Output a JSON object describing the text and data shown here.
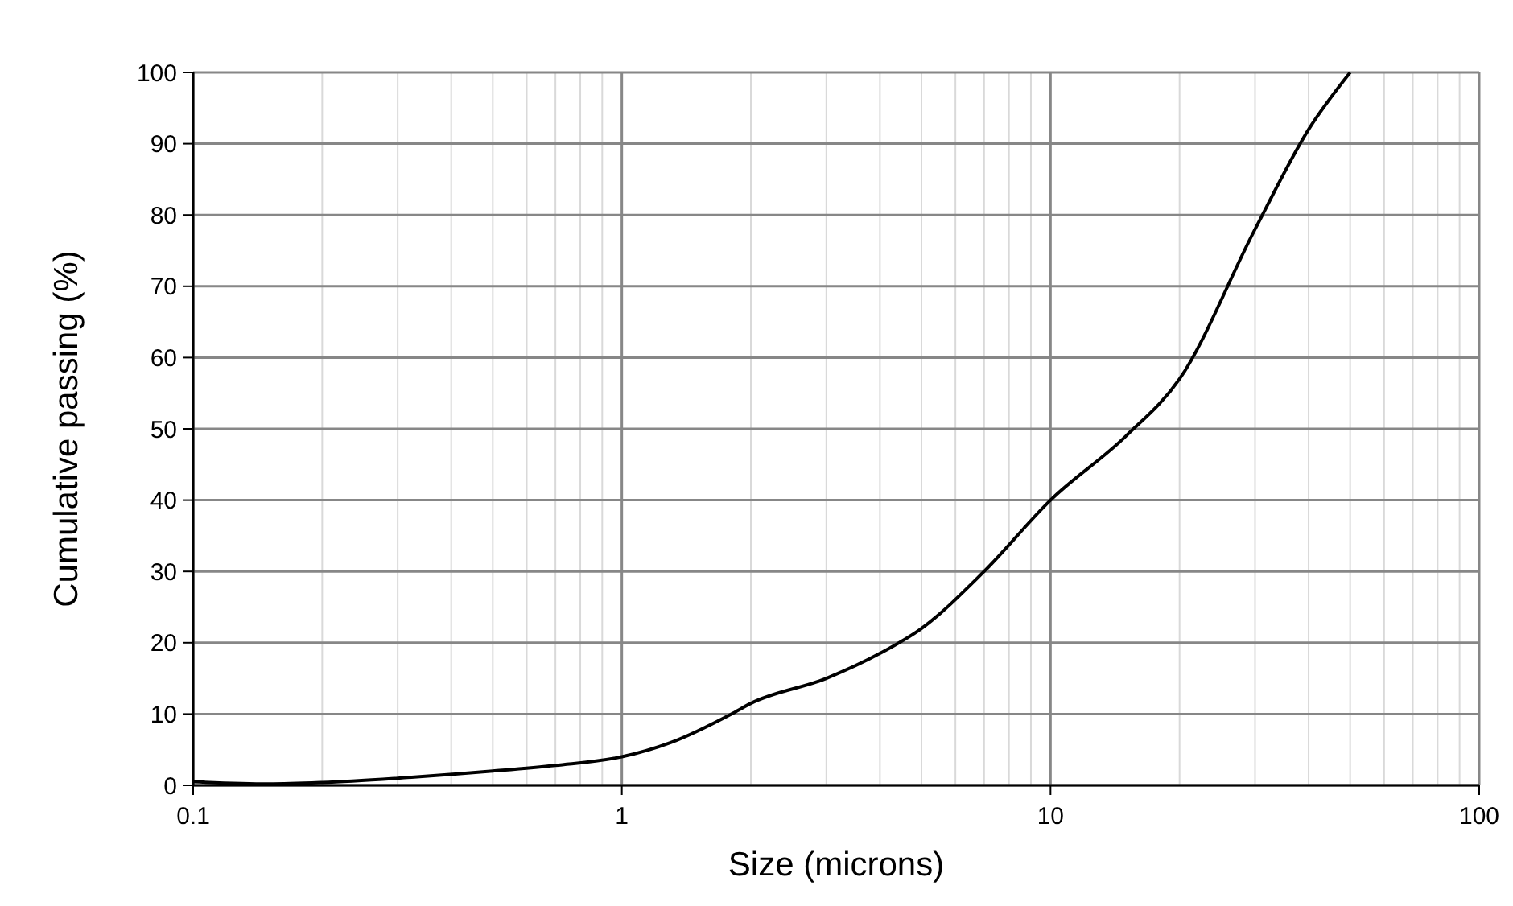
{
  "chart_data": {
    "type": "line",
    "xlabel": "Size (microns)",
    "ylabel": "Cumulative passing (%)",
    "log": "x",
    "grid": true,
    "marker": "none",
    "line_style": "solid",
    "xlim": [
      0.1,
      100
    ],
    "xticks": [
      0.1,
      1,
      10,
      100
    ],
    "ylim": [
      0,
      100
    ],
    "yticks": [
      0,
      10,
      20,
      30,
      40,
      50,
      60,
      70,
      80,
      90,
      100
    ],
    "series": [
      {
        "color": "#000000",
        "x": [
          0.1,
          0.15,
          0.2,
          0.3,
          0.5,
          0.7,
          1,
          1.3,
          1.8,
          2,
          3,
          4,
          5,
          7,
          10,
          15,
          20,
          30,
          40,
          50
        ],
        "values": [
          0.5,
          0.2,
          0.4,
          1,
          2,
          2.8,
          4,
          6,
          10,
          11.5,
          15,
          18.5,
          22,
          30,
          40,
          49,
          57,
          78,
          92,
          100
        ]
      }
    ]
  }
}
